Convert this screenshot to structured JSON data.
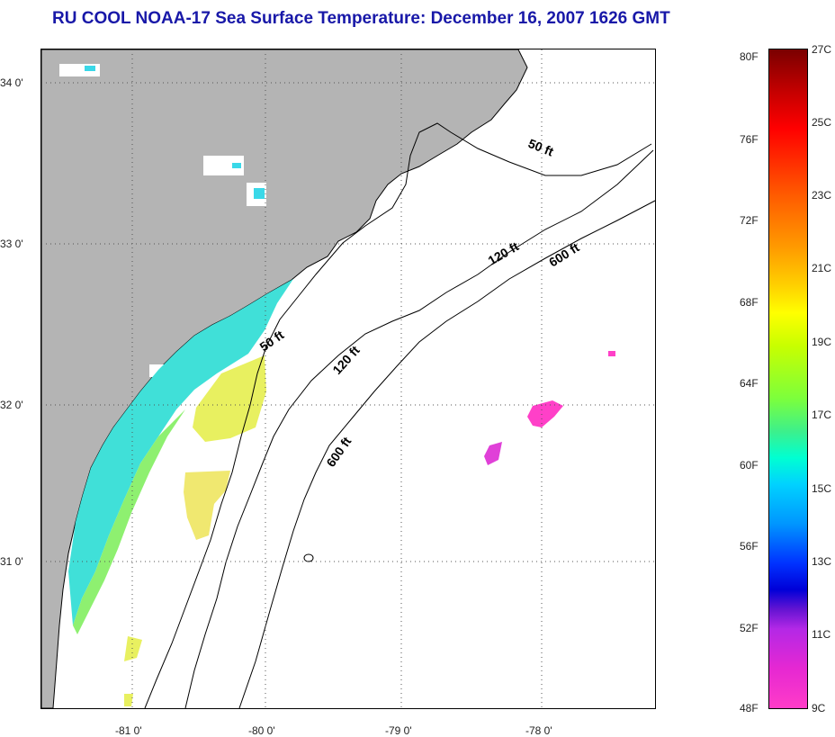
{
  "title": "RU COOL  NOAA-17  Sea Surface Temperature:  December 16, 2007 1626 GMT",
  "map": {
    "latitude_labels": [
      "34 0'",
      "33 0'",
      "32 0'",
      "31 0'"
    ],
    "longitude_labels": [
      "-81 0'",
      "-80 0'",
      "-79 0'",
      "-78 0'"
    ],
    "contour_labels": {
      "c50_north": "50 ft",
      "c50_south": "50 ft",
      "c120_north": "120 ft",
      "c120_south": "120 ft",
      "c600_north": "600 ft",
      "c600_south": "600 ft"
    },
    "land_color": "#b4b4b4",
    "gridlines": "dotted"
  },
  "colorbar": {
    "fahrenheit_ticks": [
      "80F",
      "76F",
      "72F",
      "68F",
      "64F",
      "60F",
      "56F",
      "52F",
      "48F"
    ],
    "celsius_ticks": [
      "27C",
      "25C",
      "23C",
      "21C",
      "19C",
      "17C",
      "15C",
      "13C",
      "11C",
      "9C"
    ]
  }
}
